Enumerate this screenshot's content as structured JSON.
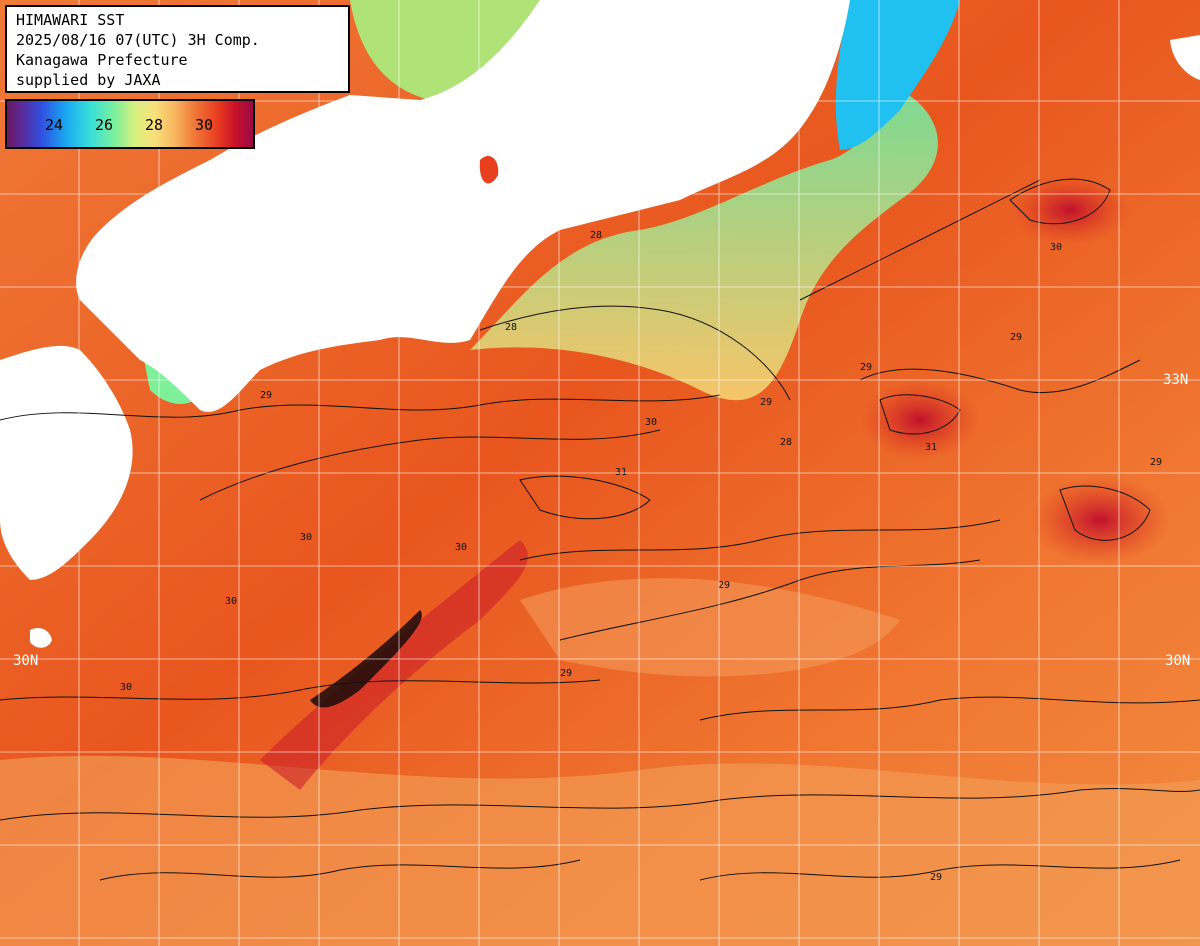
{
  "title_block": {
    "line1": "HIMAWARI SST",
    "line2": "2025/08/16 07(UTC) 3H Comp.",
    "line3": "Kanagawa Prefecture",
    "line4": "supplied by JAXA"
  },
  "legend": {
    "labels": [
      "24",
      "26",
      "28",
      "30"
    ],
    "unit_hint": "sea surface temperature colour scale",
    "colors": {
      "low": "#6a1a5e",
      "cool": "#1aa8f0",
      "mid": "#7ef09a",
      "warm": "#f07a38",
      "high": "#c8102a"
    }
  },
  "latitude_labels": {
    "lat33_right": "33N",
    "lat30_left": "30N",
    "lat30_right": "30N"
  },
  "contour_labels": [
    "28",
    "29",
    "29",
    "28",
    "29",
    "30",
    "30",
    "31",
    "29",
    "30",
    "29",
    "30",
    "29",
    "31",
    "30",
    "29",
    "28",
    "29",
    "30"
  ],
  "colors": {
    "land": "#ffffff",
    "sea_warm": "#f07838",
    "sea_hot": "#e03a1e",
    "sea_cool": "#f8c070",
    "sea_coast": "#88f080",
    "contour": "#111111",
    "grid": "#ffffff"
  }
}
